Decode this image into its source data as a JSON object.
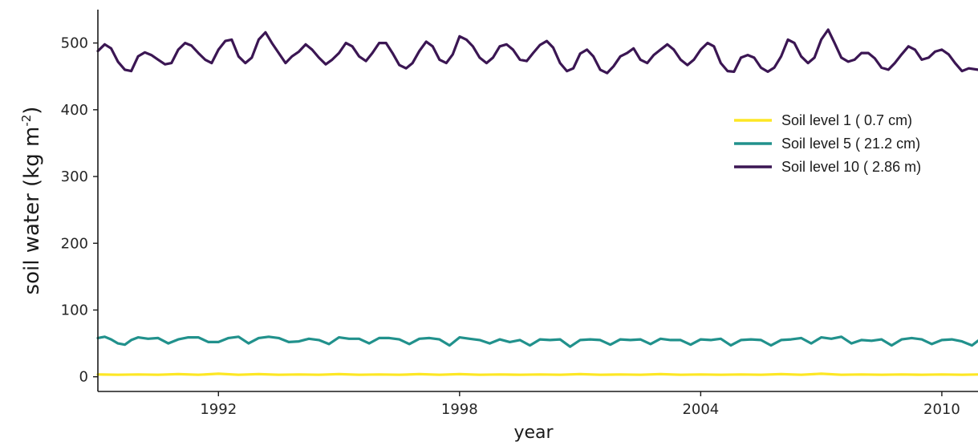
{
  "chart_data": {
    "type": "line",
    "xlabel": "year",
    "ylabel": "soil water (kg m",
    "ylabel_sup": "-2",
    "ylabel_end": ")",
    "xlim": [
      1989.0,
      2010.9
    ],
    "ylim": [
      -22,
      550
    ],
    "xticks": [
      1992,
      1998,
      2004,
      2010
    ],
    "yticks": [
      0,
      100,
      200,
      300,
      400,
      500
    ],
    "grid": false,
    "legend_position": "right, upper",
    "series": [
      {
        "name": "Soil level 1 ( 0.7 cm)",
        "color": "#fde725",
        "x": [
          1989.0,
          1989.5,
          1990.0,
          1990.5,
          1991.0,
          1991.5,
          1992.0,
          1992.5,
          1993.0,
          1993.5,
          1994.0,
          1994.5,
          1995.0,
          1995.5,
          1996.0,
          1996.5,
          1997.0,
          1997.5,
          1998.0,
          1998.5,
          1999.0,
          1999.5,
          2000.0,
          2000.5,
          2001.0,
          2001.5,
          2002.0,
          2002.5,
          2003.0,
          2003.5,
          2004.0,
          2004.5,
          2005.0,
          2005.5,
          2006.0,
          2006.5,
          2007.0,
          2007.5,
          2008.0,
          2008.5,
          2009.0,
          2009.5,
          2010.0,
          2010.5,
          2010.9
        ],
        "y": [
          3.5,
          3,
          3.5,
          3,
          4,
          3,
          4.5,
          3,
          4,
          3,
          3.5,
          3,
          4,
          3,
          3.5,
          3,
          4,
          3,
          4,
          3,
          3.5,
          3,
          3.5,
          3,
          4,
          3,
          3.5,
          3,
          4,
          3,
          3.5,
          3,
          3.5,
          3,
          4,
          3,
          4.5,
          3,
          3.5,
          3,
          3.5,
          3,
          3.5,
          3,
          3.5
        ]
      },
      {
        "name": "Soil level 5 ( 21.2 cm)",
        "color": "#21918c",
        "x": [
          1989.0,
          1989.17,
          1989.33,
          1989.5,
          1989.67,
          1989.83,
          1990.0,
          1990.25,
          1990.5,
          1990.75,
          1991.0,
          1991.25,
          1991.5,
          1991.75,
          1992.0,
          1992.25,
          1992.5,
          1992.75,
          1993.0,
          1993.25,
          1993.5,
          1993.75,
          1994.0,
          1994.25,
          1994.5,
          1994.75,
          1995.0,
          1995.25,
          1995.5,
          1995.75,
          1996.0,
          1996.25,
          1996.5,
          1996.75,
          1997.0,
          1997.25,
          1997.5,
          1997.75,
          1998.0,
          1998.25,
          1998.5,
          1998.75,
          1999.0,
          1999.25,
          1999.5,
          1999.75,
          2000.0,
          2000.25,
          2000.5,
          2000.75,
          2001.0,
          2001.25,
          2001.5,
          2001.75,
          2002.0,
          2002.25,
          2002.5,
          2002.75,
          2003.0,
          2003.25,
          2003.5,
          2003.75,
          2004.0,
          2004.25,
          2004.5,
          2004.75,
          2005.0,
          2005.25,
          2005.5,
          2005.75,
          2006.0,
          2006.25,
          2006.5,
          2006.75,
          2007.0,
          2007.25,
          2007.5,
          2007.75,
          2008.0,
          2008.25,
          2008.5,
          2008.75,
          2009.0,
          2009.25,
          2009.5,
          2009.75,
          2010.0,
          2010.25,
          2010.5,
          2010.75,
          2010.9
        ],
        "y": [
          58,
          60,
          56,
          50,
          48,
          55,
          59,
          57,
          58,
          50,
          56,
          59,
          59,
          52,
          52,
          58,
          60,
          50,
          58,
          60,
          58,
          52,
          53,
          57,
          55,
          49,
          59,
          57,
          57,
          50,
          58,
          58,
          56,
          49,
          57,
          58,
          56,
          47,
          59,
          57,
          55,
          50,
          56,
          52,
          55,
          47,
          56,
          55,
          56,
          45,
          55,
          56,
          55,
          48,
          56,
          55,
          56,
          49,
          57,
          55,
          55,
          48,
          56,
          55,
          57,
          47,
          55,
          56,
          55,
          47,
          55,
          56,
          58,
          50,
          59,
          57,
          60,
          50,
          55,
          54,
          56,
          47,
          56,
          58,
          56,
          49,
          55,
          56,
          53,
          47,
          54
        ]
      },
      {
        "name": "Soil level 10 ( 2.86 m)",
        "color": "#3b1653",
        "x": [
          1989.0,
          1989.17,
          1989.33,
          1989.5,
          1989.67,
          1989.83,
          1990.0,
          1990.17,
          1990.33,
          1990.5,
          1990.67,
          1990.83,
          1991.0,
          1991.17,
          1991.33,
          1991.5,
          1991.67,
          1991.83,
          1992.0,
          1992.17,
          1992.33,
          1992.5,
          1992.67,
          1992.83,
          1993.0,
          1993.17,
          1993.33,
          1993.5,
          1993.67,
          1993.83,
          1994.0,
          1994.17,
          1994.33,
          1994.5,
          1994.67,
          1994.83,
          1995.0,
          1995.17,
          1995.33,
          1995.5,
          1995.67,
          1995.83,
          1996.0,
          1996.17,
          1996.33,
          1996.5,
          1996.67,
          1996.83,
          1997.0,
          1997.17,
          1997.33,
          1997.5,
          1997.67,
          1997.83,
          1998.0,
          1998.17,
          1998.33,
          1998.5,
          1998.67,
          1998.83,
          1999.0,
          1999.17,
          1999.33,
          1999.5,
          1999.67,
          1999.83,
          2000.0,
          2000.17,
          2000.33,
          2000.5,
          2000.67,
          2000.83,
          2001.0,
          2001.17,
          2001.33,
          2001.5,
          2001.67,
          2001.83,
          2002.0,
          2002.17,
          2002.33,
          2002.5,
          2002.67,
          2002.83,
          2003.0,
          2003.17,
          2003.33,
          2003.5,
          2003.67,
          2003.83,
          2004.0,
          2004.17,
          2004.33,
          2004.5,
          2004.67,
          2004.83,
          2005.0,
          2005.17,
          2005.33,
          2005.5,
          2005.67,
          2005.83,
          2006.0,
          2006.17,
          2006.33,
          2006.5,
          2006.67,
          2006.83,
          2007.0,
          2007.17,
          2007.33,
          2007.5,
          2007.67,
          2007.83,
          2008.0,
          2008.17,
          2008.33,
          2008.5,
          2008.67,
          2008.83,
          2009.0,
          2009.17,
          2009.33,
          2009.5,
          2009.67,
          2009.83,
          2010.0,
          2010.17,
          2010.33,
          2010.5,
          2010.67,
          2010.9
        ],
        "y": [
          488,
          498,
          492,
          472,
          460,
          458,
          480,
          486,
          482,
          475,
          468,
          470,
          490,
          500,
          496,
          485,
          475,
          470,
          490,
          503,
          505,
          480,
          470,
          478,
          505,
          516,
          500,
          485,
          470,
          480,
          487,
          498,
          490,
          478,
          468,
          475,
          485,
          500,
          495,
          480,
          473,
          485,
          500,
          500,
          485,
          467,
          462,
          470,
          488,
          502,
          495,
          475,
          470,
          483,
          510,
          505,
          495,
          478,
          470,
          478,
          495,
          498,
          490,
          475,
          473,
          485,
          497,
          503,
          493,
          470,
          458,
          462,
          484,
          490,
          480,
          460,
          455,
          465,
          480,
          485,
          492,
          475,
          470,
          482,
          490,
          498,
          490,
          475,
          467,
          475,
          490,
          500,
          495,
          470,
          458,
          457,
          478,
          482,
          478,
          463,
          457,
          463,
          480,
          505,
          500,
          480,
          470,
          478,
          505,
          520,
          500,
          478,
          472,
          475,
          485,
          485,
          477,
          463,
          460,
          470,
          483,
          495,
          490,
          475,
          478,
          487,
          490,
          483,
          470,
          458,
          462,
          460
        ]
      }
    ]
  }
}
